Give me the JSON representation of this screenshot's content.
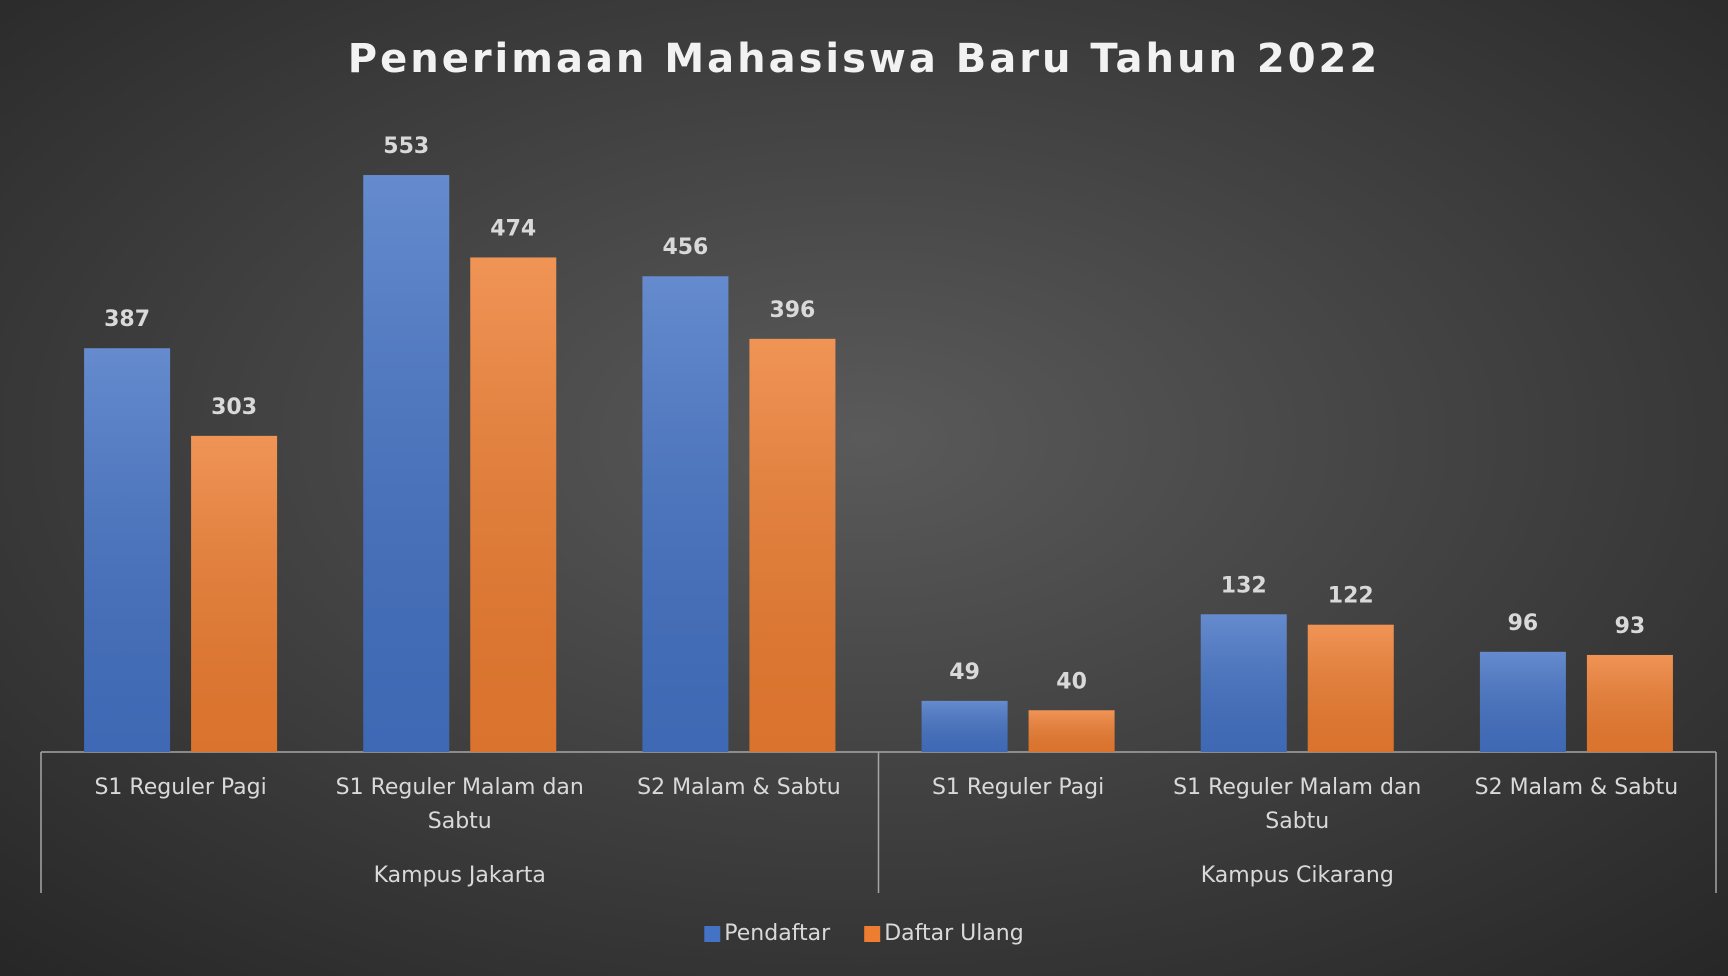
{
  "chart_data": {
    "type": "bar",
    "title": "Penerimaan Mahasiswa Baru Tahun 2022",
    "groups": [
      {
        "name": "Kampus Jakarta",
        "categories": [
          "S1 Reguler Pagi",
          "S1 Reguler Malam dan Sabtu",
          "S2 Malam & Sabtu"
        ]
      },
      {
        "name": "Kampus Cikarang",
        "categories": [
          "S1 Reguler Pagi",
          "S1 Reguler Malam dan Sabtu",
          "S2 Malam & Sabtu"
        ]
      }
    ],
    "series": [
      {
        "name": "Pendaftar",
        "color": "#4472c4",
        "values": [
          387,
          553,
          456,
          49,
          132,
          96
        ]
      },
      {
        "name": "Daftar Ulang",
        "color": "#ed7d31",
        "values": [
          303,
          474,
          396,
          40,
          122,
          93
        ]
      }
    ],
    "ylim": [
      0,
      600
    ],
    "legend": "bottom"
  }
}
